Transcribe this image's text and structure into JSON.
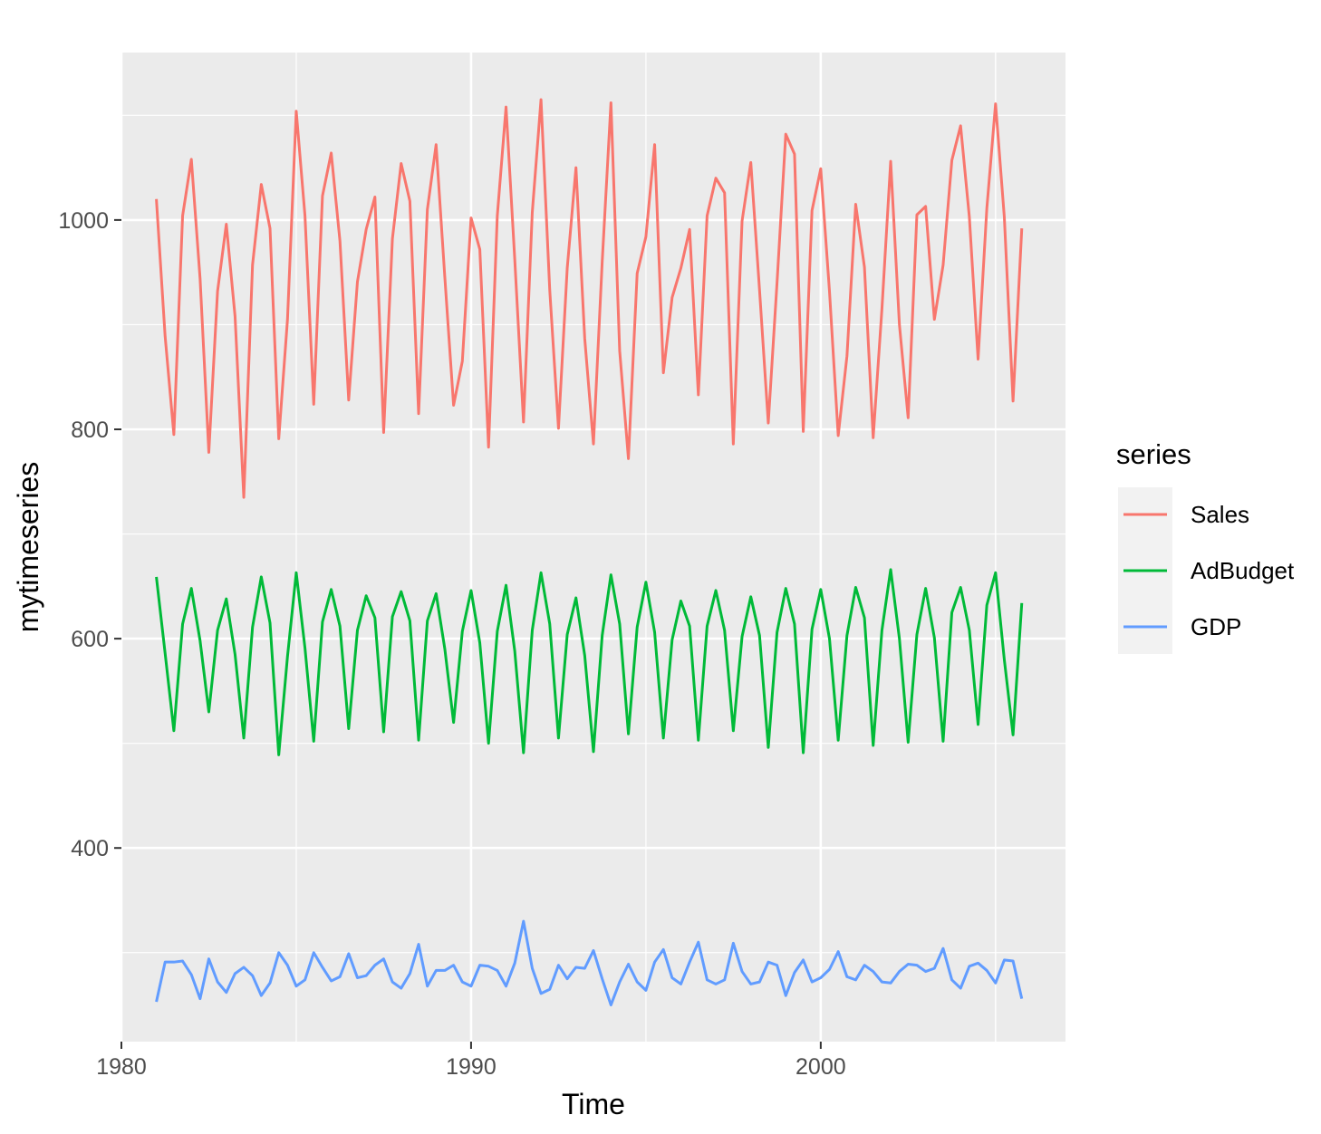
{
  "chart_data": {
    "type": "line",
    "xlabel": "Time",
    "ylabel": "mytimeseries",
    "xlim": [
      1980,
      2007
    ],
    "ylim": [
      215,
      1160
    ],
    "x_ticks": [
      1980,
      1990,
      2000
    ],
    "y_ticks": [
      400,
      600,
      800,
      1000
    ],
    "grid": true,
    "legend": {
      "title": "series",
      "position": "right"
    },
    "x_start": 1981,
    "frequency": 4,
    "series": [
      {
        "name": "Sales",
        "color": "#F8766D",
        "values": [
          1020,
          889,
          795,
          1004,
          1058,
          944,
          778,
          932,
          996,
          908,
          735,
          957,
          1034,
          992,
          791,
          905,
          1104,
          1004,
          824,
          1023,
          1064,
          980,
          828,
          941,
          991,
          1022,
          797,
          982,
          1054,
          1018,
          815,
          1010,
          1072,
          945,
          823,
          865,
          1002,
          972,
          783,
          1004,
          1108,
          962,
          807,
          1007,
          1115,
          933,
          801,
          954,
          1050,
          887,
          786,
          960,
          1112,
          875,
          772,
          949,
          984,
          1072,
          854,
          926,
          954,
          991,
          833,
          1004,
          1040,
          1026,
          786,
          999,
          1055,
          933,
          806,
          940,
          1082,
          1063,
          798,
          1009,
          1049,
          932,
          794,
          870,
          1015,
          955,
          792,
          915,
          1056,
          900,
          811,
          1005,
          1013,
          905,
          957,
          1057,
          1090,
          1003,
          867,
          1011,
          1111,
          1003,
          827,
          992
        ]
      },
      {
        "name": "AdBudget",
        "color": "#00BA38",
        "values": [
          659,
          586,
          512,
          614,
          648,
          598,
          530,
          608,
          638,
          585,
          505,
          611,
          659,
          615,
          489,
          583,
          663,
          591,
          502,
          616,
          647,
          612,
          514,
          608,
          641,
          620,
          511,
          621,
          645,
          617,
          503,
          617,
          643,
          590,
          520,
          607,
          646,
          596,
          500,
          607,
          651,
          588,
          491,
          608,
          663,
          614,
          505,
          604,
          639,
          584,
          492,
          603,
          661,
          614,
          509,
          611,
          654,
          606,
          505,
          599,
          636,
          612,
          503,
          612,
          646,
          608,
          512,
          602,
          640,
          603,
          496,
          606,
          648,
          614,
          491,
          609,
          647,
          600,
          503,
          603,
          649,
          620,
          498,
          608,
          666,
          600,
          501,
          604,
          648,
          601,
          502,
          625,
          649,
          608,
          518,
          632,
          663,
          580,
          508,
          634
        ]
      },
      {
        "name": "GDP",
        "color": "#619CFF",
        "values": [
          253,
          291,
          291,
          292,
          279,
          256,
          294,
          272,
          262,
          280,
          286,
          278,
          259,
          271,
          300,
          288,
          268,
          274,
          300,
          286,
          273,
          277,
          299,
          276,
          278,
          288,
          294,
          272,
          266,
          280,
          308,
          268,
          283,
          283,
          288,
          272,
          268,
          288,
          287,
          283,
          268,
          290,
          330,
          285,
          261,
          265,
          288,
          275,
          286,
          285,
          302,
          275,
          250,
          272,
          289,
          272,
          264,
          291,
          303,
          276,
          270,
          291,
          310,
          274,
          270,
          274,
          309,
          282,
          270,
          272,
          291,
          288,
          259,
          281,
          293,
          272,
          276,
          284,
          301,
          277,
          274,
          288,
          282,
          272,
          271,
          282,
          289,
          288,
          282,
          285,
          304,
          274,
          266,
          287,
          290,
          283,
          271,
          293,
          292,
          256
        ]
      }
    ]
  }
}
